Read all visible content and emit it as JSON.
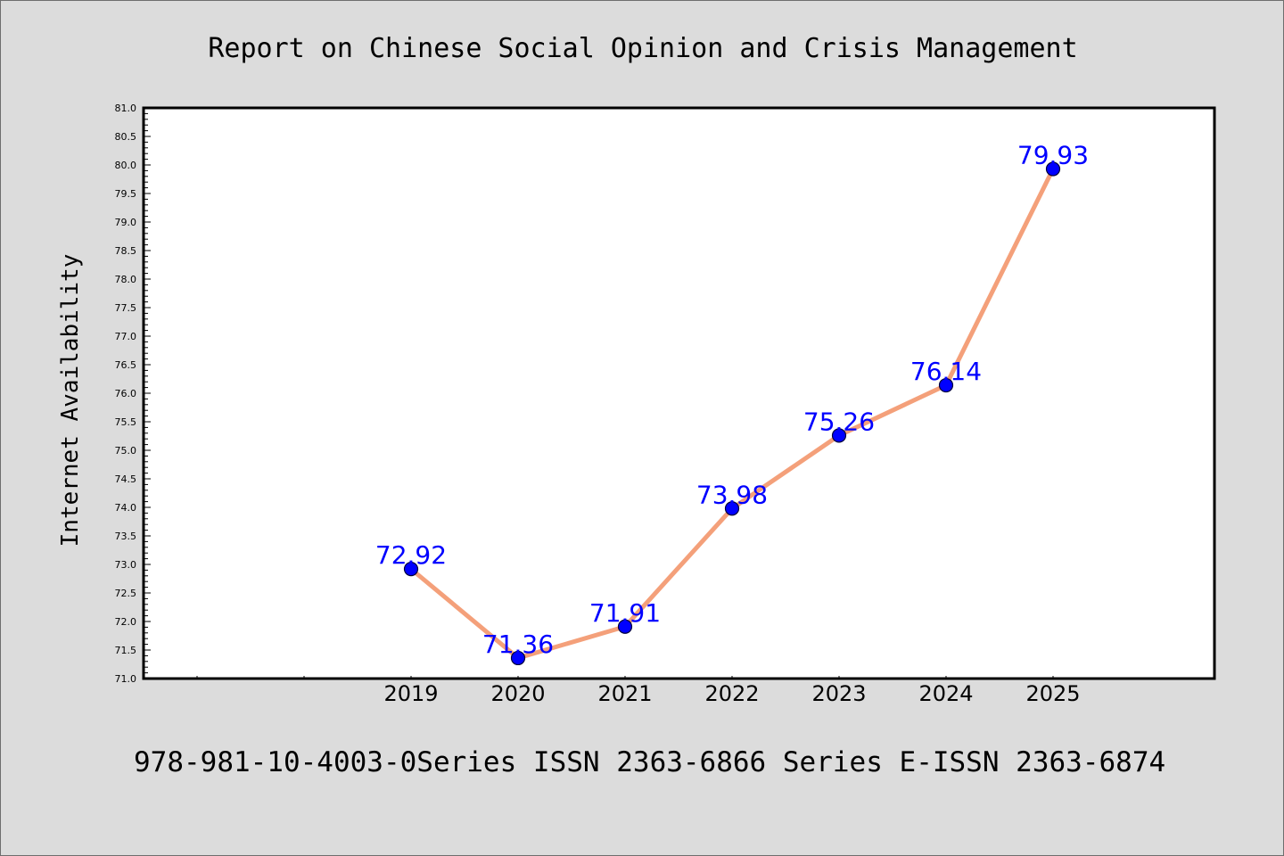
{
  "chart_data": {
    "type": "line",
    "title": "Report on Chinese Social Opinion and Crisis Management",
    "ylabel": "Internet Availability",
    "xlabel": "",
    "footer": "978-981-10-4003-0Series ISSN 2363-6866 Series E-ISSN 2363-6874",
    "categories": [
      "2019",
      "2020",
      "2021",
      "2022",
      "2023",
      "2024",
      "2025"
    ],
    "series": [
      {
        "values": [
          72.92,
          71.36,
          71.91,
          73.98,
          75.26,
          76.14,
          79.93
        ],
        "labels": [
          "72.92",
          "71.36",
          "71.91",
          "73.98",
          "75.26",
          "76.14",
          "79.93"
        ]
      }
    ],
    "ylim": [
      71.0,
      81.0
    ],
    "ytick_step": 0.5,
    "grid": false,
    "legend": "none",
    "colors": {
      "background": "#dcdcdc",
      "plot_background": "#ffffff",
      "line": "#f4a07a",
      "marker": "#0000ff",
      "data_label": "#0000ff",
      "text": "#000000"
    }
  }
}
